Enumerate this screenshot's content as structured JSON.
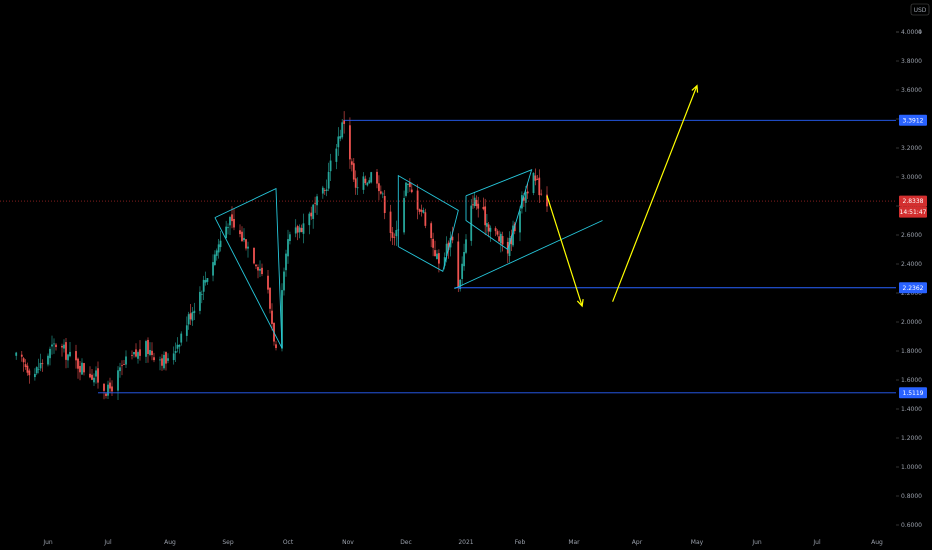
{
  "chart_data": {
    "type": "candlestick",
    "currency_label": "USD",
    "price_ticks": [
      "4",
      "4.0000",
      "3.8000",
      "3.6000",
      "3.4000",
      "3.2000",
      "3.0000",
      "2.8000",
      "2.6000",
      "2.4000",
      "2.2000",
      "2.0000",
      "1.8000",
      "1.6000",
      "1.4000",
      "1.2000",
      "1.0000",
      "0.8000",
      "0.6000"
    ],
    "ylim": [
      0.6,
      4.15
    ],
    "x_labels": [
      "Jun",
      "Jul",
      "Aug",
      "Sep",
      "Oct",
      "Nov",
      "Dec",
      "2021",
      "Feb",
      "Mar",
      "Apr",
      "May",
      "Jun",
      "Jul",
      "Aug"
    ],
    "horizontal_levels": [
      {
        "value": 3.3912,
        "label": "3.3912"
      },
      {
        "value": 2.2362,
        "label": "2.2362"
      },
      {
        "value": 1.5119,
        "label": "1.5119"
      }
    ],
    "last_price": {
      "value": 2.8338,
      "label": "2.8338",
      "countdown": "14:51:47"
    },
    "colors": {
      "background": "#000000",
      "up": "#26a69a",
      "down": "#ef5350",
      "level_line": "#2962ff",
      "pattern_line": "#26c6da",
      "projection_arrow": "#ffff00",
      "last_price": "#d32f2f"
    },
    "price_path": [
      [
        "2020-05-15",
        1.75
      ],
      [
        "2020-05-25",
        1.65
      ],
      [
        "2020-06-05",
        1.85
      ],
      [
        "2020-06-15",
        1.72
      ],
      [
        "2020-06-25",
        1.62
      ],
      [
        "2020-07-01",
        1.52
      ],
      [
        "2020-07-10",
        1.72
      ],
      [
        "2020-07-20",
        1.82
      ],
      [
        "2020-07-31",
        1.72
      ],
      [
        "2020-08-10",
        2.0
      ],
      [
        "2020-08-20",
        2.3
      ],
      [
        "2020-09-01",
        2.7
      ],
      [
        "2020-09-10",
        2.55
      ],
      [
        "2020-09-20",
        2.3
      ],
      [
        "2020-09-25",
        1.8
      ],
      [
        "2020-10-01",
        2.55
      ],
      [
        "2020-10-10",
        2.7
      ],
      [
        "2020-10-20",
        2.9
      ],
      [
        "2020-10-25",
        3.2
      ],
      [
        "2020-10-30",
        3.39
      ],
      [
        "2020-11-05",
        2.9
      ],
      [
        "2020-11-15",
        3.05
      ],
      [
        "2020-11-25",
        2.55
      ],
      [
        "2020-12-01",
        2.95
      ],
      [
        "2020-12-10",
        2.75
      ],
      [
        "2020-12-18",
        2.4
      ],
      [
        "2020-12-25",
        2.6
      ],
      [
        "2020-12-28",
        2.24
      ],
      [
        "2021-01-05",
        2.85
      ],
      [
        "2021-01-15",
        2.65
      ],
      [
        "2021-01-25",
        2.5
      ],
      [
        "2021-02-01",
        2.8
      ],
      [
        "2021-02-07",
        3.0
      ],
      [
        "2021-02-12",
        2.9
      ],
      [
        "2021-02-15",
        2.83
      ]
    ],
    "annotations": {
      "patterns": [
        [
          [
            "2020-08-25",
            2.72
          ],
          [
            "2020-09-25",
            2.92
          ],
          [
            "2020-09-28",
            1.82
          ],
          [
            "2020-08-25",
            2.72
          ]
        ],
        [
          [
            "2020-11-27",
            2.52
          ],
          [
            "2020-11-27",
            3.01
          ],
          [
            "2020-12-28",
            2.77
          ],
          [
            "2020-12-20",
            2.35
          ],
          [
            "2020-11-27",
            2.52
          ]
        ],
        [
          [
            "2021-01-01",
            2.87
          ],
          [
            "2021-01-01",
            2.7
          ],
          [
            "2021-01-25",
            2.5
          ],
          [
            "2021-02-07",
            3.05
          ],
          [
            "2021-01-01",
            2.87
          ]
        ],
        [
          [
            "2020-12-26",
            2.23
          ],
          [
            "2021-03-15",
            2.7
          ]
        ]
      ],
      "arrows": [
        {
          "from": [
            "2021-02-15",
            2.87
          ],
          "to": [
            "2021-03-05",
            2.11
          ]
        },
        {
          "from": [
            "2021-03-20",
            2.14
          ],
          "to": [
            "2021-05-01",
            3.63
          ]
        }
      ]
    }
  }
}
